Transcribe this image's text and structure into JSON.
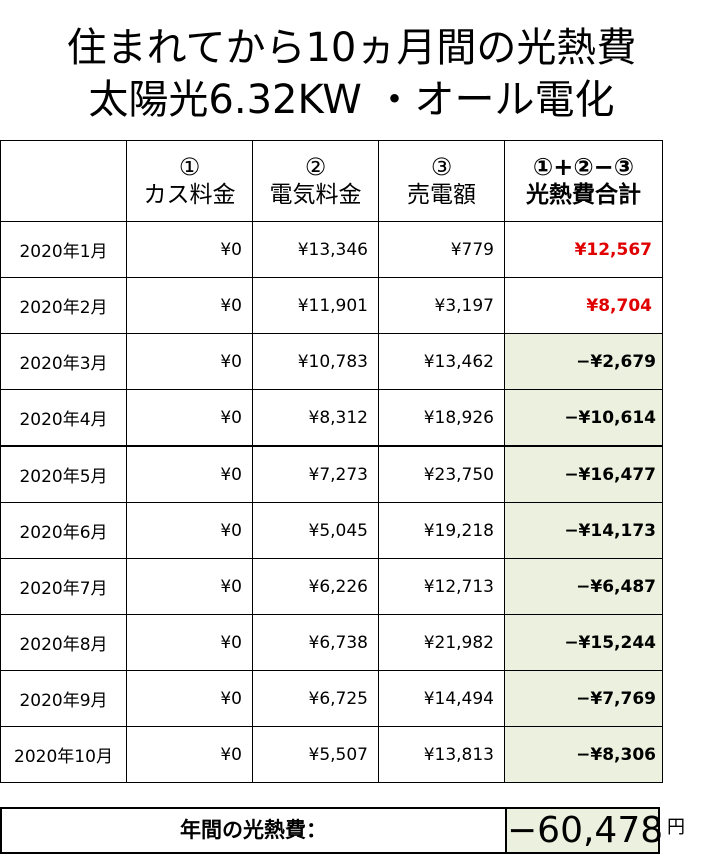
{
  "title": {
    "line1": "住まれてから10ヵ月間の光熱費",
    "line2": "太陽光6.32KW ・オール電化"
  },
  "table": {
    "headers": [
      {
        "num": "",
        "label": ""
      },
      {
        "num": "①",
        "label": "カス料金"
      },
      {
        "num": "②",
        "label": "電気料金"
      },
      {
        "num": "③",
        "label": "売電額"
      },
      {
        "num": "①+②−③",
        "label": "光熱費合計"
      }
    ],
    "rows": [
      {
        "month": "2020年1月",
        "gas": "¥0",
        "electric": "¥13,346",
        "sold": "¥779",
        "total": "¥12,567",
        "sign": "pos"
      },
      {
        "month": "2020年2月",
        "gas": "¥0",
        "electric": "¥11,901",
        "sold": "¥3,197",
        "total": "¥8,704",
        "sign": "pos"
      },
      {
        "month": "2020年3月",
        "gas": "¥0",
        "electric": "¥10,783",
        "sold": "¥13,462",
        "total": "−¥2,679",
        "sign": "neg"
      },
      {
        "month": "2020年4月",
        "gas": "¥0",
        "electric": "¥8,312",
        "sold": "¥18,926",
        "total": "−¥10,614",
        "sign": "neg"
      },
      {
        "month": "2020年5月",
        "gas": "¥0",
        "electric": "¥7,273",
        "sold": "¥23,750",
        "total": "−¥16,477",
        "sign": "neg"
      },
      {
        "month": "2020年6月",
        "gas": "¥0",
        "electric": "¥5,045",
        "sold": "¥19,218",
        "total": "−¥14,173",
        "sign": "neg"
      },
      {
        "month": "2020年7月",
        "gas": "¥0",
        "electric": "¥6,226",
        "sold": "¥12,713",
        "total": "−¥6,487",
        "sign": "neg"
      },
      {
        "month": "2020年8月",
        "gas": "¥0",
        "electric": "¥6,738",
        "sold": "¥21,982",
        "total": "−¥15,244",
        "sign": "neg"
      },
      {
        "month": "2020年9月",
        "gas": "¥0",
        "electric": "¥6,725",
        "sold": "¥14,494",
        "total": "−¥7,769",
        "sign": "neg"
      },
      {
        "month": "2020年10月",
        "gas": "¥0",
        "electric": "¥5,507",
        "sold": "¥13,813",
        "total": "−¥8,306",
        "sign": "neg"
      }
    ]
  },
  "annual": {
    "label": "年間の光熱費：",
    "value": "−60,478",
    "unit": "円"
  },
  "colors": {
    "positive_total": "#e00000",
    "negative_fill": "#ebf1de"
  }
}
